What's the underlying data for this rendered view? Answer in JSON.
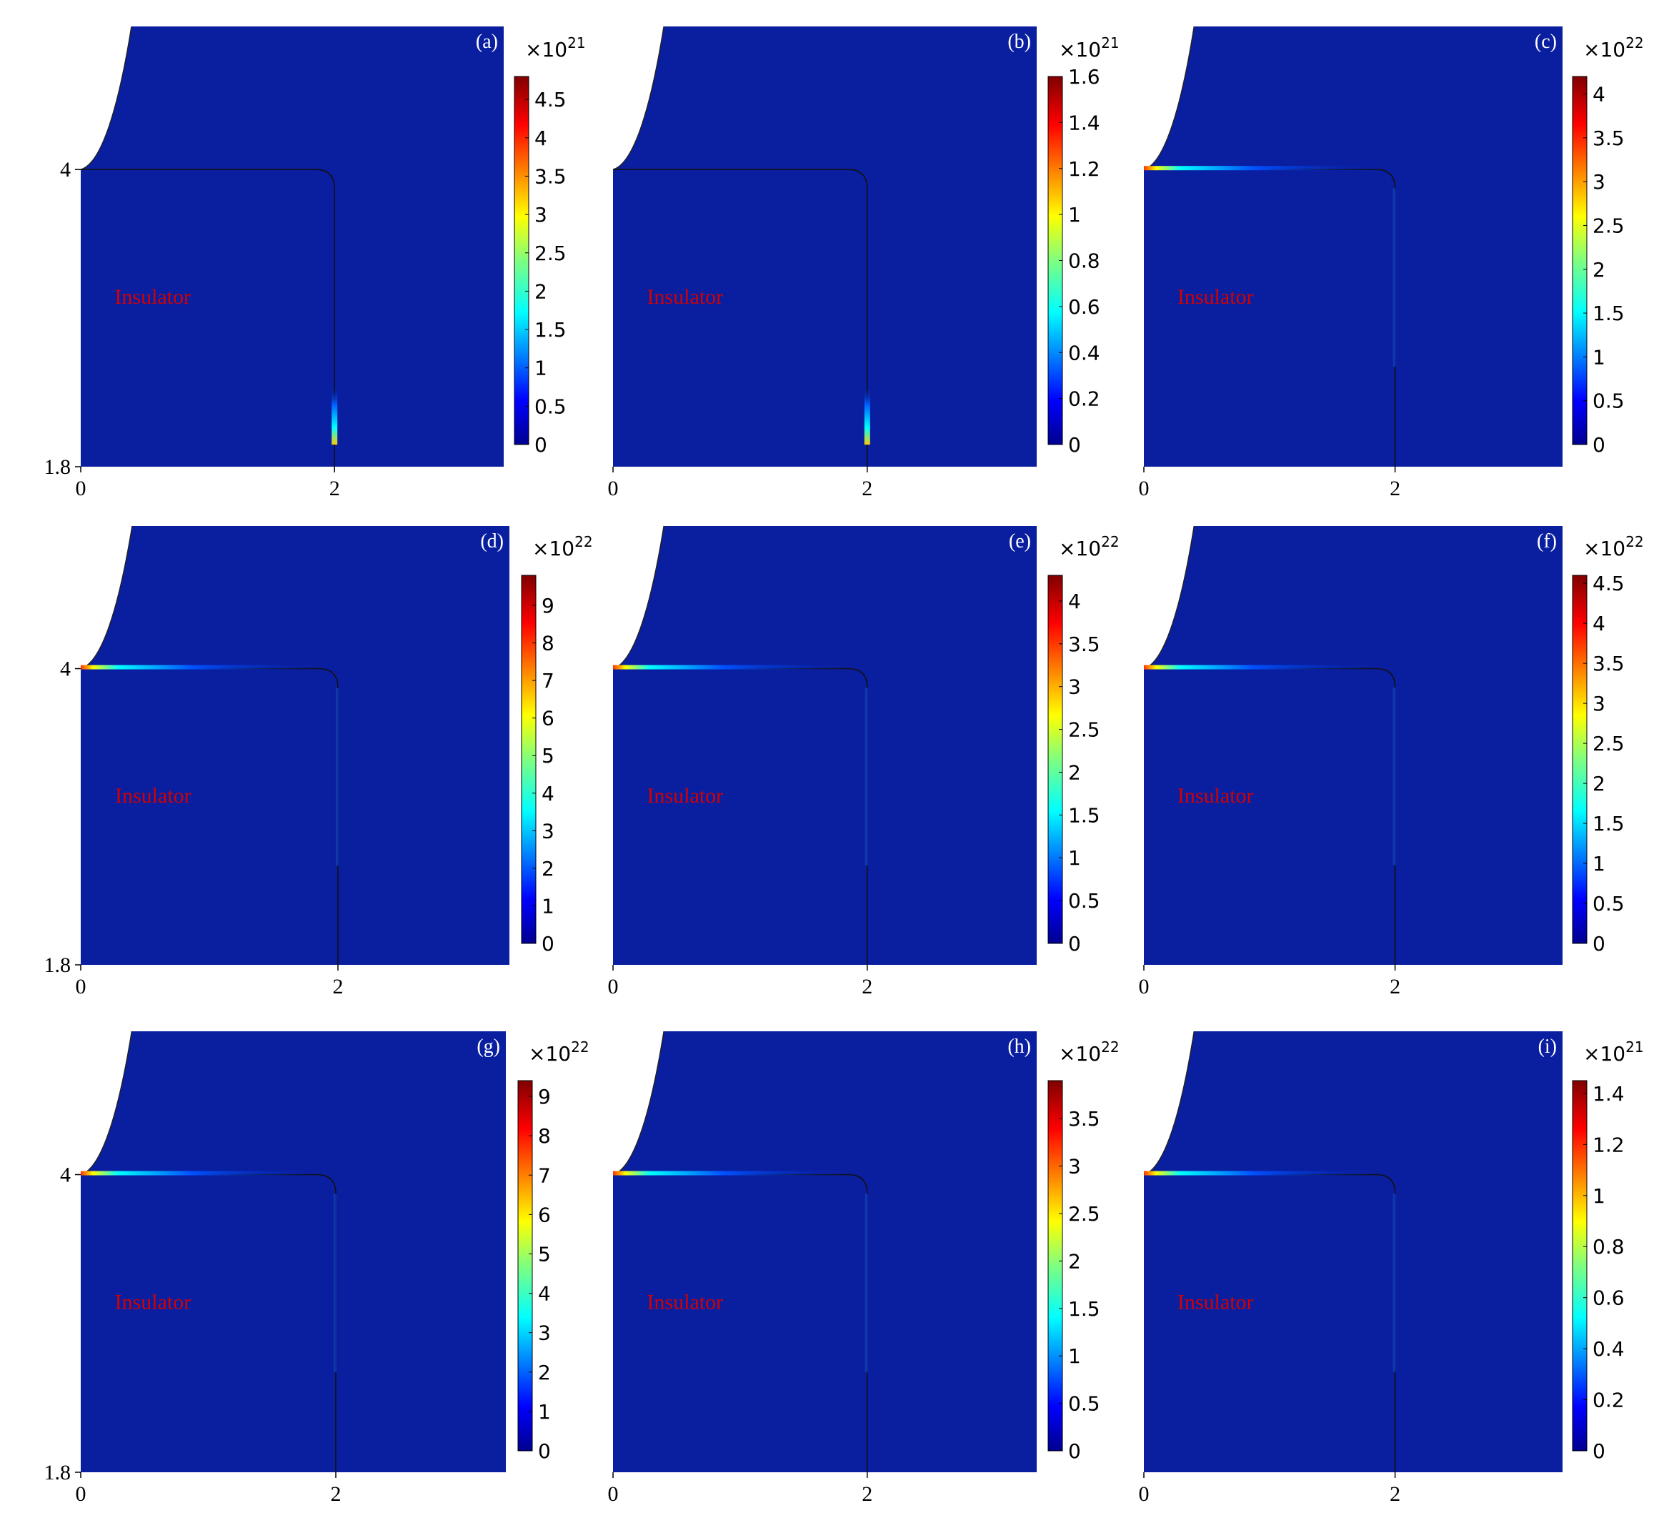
{
  "figure": {
    "insulator_label": "Insulator",
    "panels": [
      {
        "label": "(a)",
        "exponent_base": "×10",
        "exponent": "21",
        "colorbar_ticks": [
          "0",
          "0.5",
          "1",
          "1.5",
          "2",
          "2.5",
          "3",
          "3.5",
          "4",
          "4.5"
        ],
        "colorbar_max": 4.8,
        "y_ticks": [
          "4",
          "1.8"
        ],
        "x_ticks": [
          "0",
          "2"
        ],
        "hotspot": "edge"
      },
      {
        "label": "(b)",
        "exponent_base": "×10",
        "exponent": "21",
        "colorbar_ticks": [
          "0",
          "0.2",
          "0.4",
          "0.6",
          "0.8",
          "1",
          "1.2",
          "1.4",
          "1.6"
        ],
        "colorbar_max": 1.6,
        "y_ticks": [],
        "x_ticks": [
          "0",
          "2"
        ],
        "hotspot": "edge"
      },
      {
        "label": "(c)",
        "exponent_base": "×10",
        "exponent": "22",
        "colorbar_ticks": [
          "0",
          "0.5",
          "1",
          "1.5",
          "2",
          "2.5",
          "3",
          "3.5",
          "4"
        ],
        "colorbar_max": 4.2,
        "y_ticks": [],
        "x_ticks": [
          "0",
          "2"
        ],
        "hotspot": "triple"
      },
      {
        "label": "(d)",
        "exponent_base": "×10",
        "exponent": "22",
        "colorbar_ticks": [
          "0",
          "1",
          "2",
          "3",
          "4",
          "5",
          "6",
          "7",
          "8",
          "9"
        ],
        "colorbar_max": 9.8,
        "y_ticks": [
          "4",
          "1.8"
        ],
        "x_ticks": [
          "0",
          "2"
        ],
        "hotspot": "triple"
      },
      {
        "label": "(e)",
        "exponent_base": "×10",
        "exponent": "22",
        "colorbar_ticks": [
          "0",
          "0.5",
          "1",
          "1.5",
          "2",
          "2.5",
          "3",
          "3.5",
          "4"
        ],
        "colorbar_max": 4.3,
        "y_ticks": [],
        "x_ticks": [
          "0",
          "2"
        ],
        "hotspot": "triple"
      },
      {
        "label": "(f)",
        "exponent_base": "×10",
        "exponent": "22",
        "colorbar_ticks": [
          "0",
          "0.5",
          "1",
          "1.5",
          "2",
          "2.5",
          "3",
          "3.5",
          "4",
          "4.5"
        ],
        "colorbar_max": 4.6,
        "y_ticks": [],
        "x_ticks": [
          "0",
          "2"
        ],
        "hotspot": "triple"
      },
      {
        "label": "(g)",
        "exponent_base": "×10",
        "exponent": "22",
        "colorbar_ticks": [
          "0",
          "1",
          "2",
          "3",
          "4",
          "5",
          "6",
          "7",
          "8",
          "9"
        ],
        "colorbar_max": 9.4,
        "y_ticks": [
          "4",
          "1.8"
        ],
        "x_ticks": [
          "0",
          "2"
        ],
        "hotspot": "triple"
      },
      {
        "label": "(h)",
        "exponent_base": "×10",
        "exponent": "22",
        "colorbar_ticks": [
          "0",
          "0.5",
          "1",
          "1.5",
          "2",
          "2.5",
          "3",
          "3.5"
        ],
        "colorbar_max": 3.9,
        "y_ticks": [],
        "x_ticks": [
          "0",
          "2"
        ],
        "hotspot": "triple"
      },
      {
        "label": "(i)",
        "exponent_base": "×10",
        "exponent": "21",
        "colorbar_ticks": [
          "0",
          "0.2",
          "0.4",
          "0.6",
          "0.8",
          "1",
          "1.2",
          "1.4"
        ],
        "colorbar_max": 1.45,
        "y_ticks": [],
        "x_ticks": [
          "0",
          "2"
        ],
        "hotspot": "triple"
      }
    ]
  },
  "chart_data": [
    {
      "type": "heatmap",
      "panel": "(a)",
      "x_ticks": [
        0,
        2
      ],
      "y_ticks": [
        1.8,
        4
      ],
      "colorbar_range": [
        0,
        4.8
      ],
      "colorbar_unit": "×10^21",
      "colormap": "jet"
    },
    {
      "type": "heatmap",
      "panel": "(b)",
      "x_ticks": [
        0,
        2
      ],
      "colorbar_range": [
        0,
        1.6
      ],
      "colorbar_unit": "×10^21",
      "colormap": "jet"
    },
    {
      "type": "heatmap",
      "panel": "(c)",
      "x_ticks": [
        0,
        2
      ],
      "colorbar_range": [
        0,
        4.2
      ],
      "colorbar_unit": "×10^22",
      "colormap": "jet"
    },
    {
      "type": "heatmap",
      "panel": "(d)",
      "x_ticks": [
        0,
        2
      ],
      "y_ticks": [
        1.8,
        4
      ],
      "colorbar_range": [
        0,
        9.8
      ],
      "colorbar_unit": "×10^22",
      "colormap": "jet"
    },
    {
      "type": "heatmap",
      "panel": "(e)",
      "x_ticks": [
        0,
        2
      ],
      "colorbar_range": [
        0,
        4.3
      ],
      "colorbar_unit": "×10^22",
      "colormap": "jet"
    },
    {
      "type": "heatmap",
      "panel": "(f)",
      "x_ticks": [
        0,
        2
      ],
      "colorbar_range": [
        0,
        4.6
      ],
      "colorbar_unit": "×10^22",
      "colormap": "jet"
    },
    {
      "type": "heatmap",
      "panel": "(g)",
      "x_ticks": [
        0,
        2
      ],
      "y_ticks": [
        1.8,
        4
      ],
      "colorbar_range": [
        0,
        9.4
      ],
      "colorbar_unit": "×10^22",
      "colormap": "jet"
    },
    {
      "type": "heatmap",
      "panel": "(h)",
      "x_ticks": [
        0,
        2
      ],
      "colorbar_range": [
        0,
        3.9
      ],
      "colorbar_unit": "×10^22",
      "colormap": "jet"
    },
    {
      "type": "heatmap",
      "panel": "(i)",
      "x_ticks": [
        0,
        2
      ],
      "colorbar_range": [
        0,
        1.45
      ],
      "colorbar_unit": "×10^21",
      "colormap": "jet"
    }
  ]
}
